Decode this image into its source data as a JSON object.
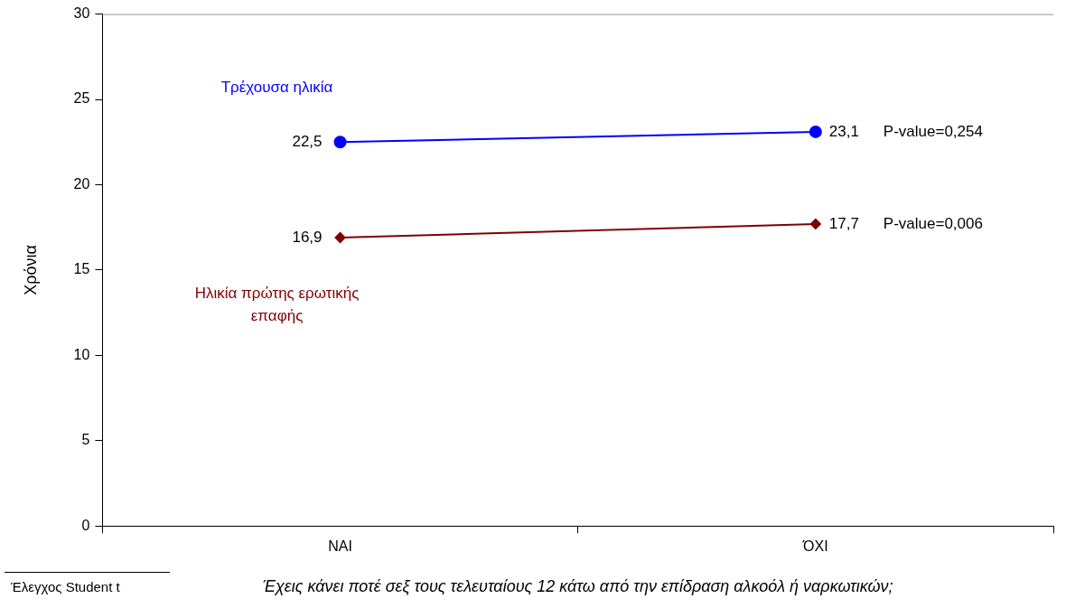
{
  "chart_data": {
    "type": "line",
    "xlabel": "Έχεις κάνει ποτέ σεξ τους τελευταίους 12 κάτω από την επίδραση αλκοόλ ή ναρκωτικών;",
    "ylabel": "Χρόνια",
    "categories": [
      "ΝΑΙ",
      "ΌΧΙ"
    ],
    "series": [
      {
        "name": "Τρέχουσα ηλικία",
        "color": "#0000ff",
        "marker": "circle",
        "values": [
          22.5,
          23.1
        ],
        "value_labels": [
          "22,5",
          "23,1"
        ]
      },
      {
        "name": "Ηλικία πρώτης ερωτικής επαφής",
        "color": "#800000",
        "marker": "diamond",
        "values": [
          16.9,
          17.7
        ],
        "value_labels": [
          "16,9",
          "17,7"
        ]
      }
    ],
    "ylim": [
      0,
      30
    ],
    "yticks": [
      0,
      5,
      10,
      15,
      20,
      25,
      30
    ],
    "grid": false,
    "legend": false,
    "annotations": [
      "P-value=0,254",
      "P-value=0,006",
      "Έλεγχος Student t"
    ]
  }
}
